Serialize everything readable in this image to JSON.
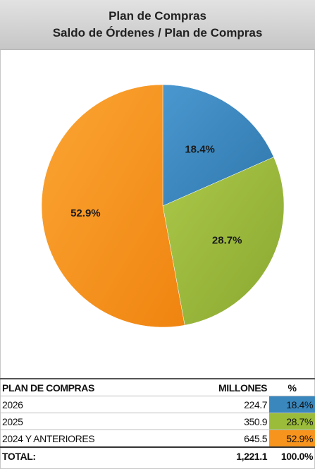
{
  "chart_data": {
    "type": "pie",
    "title": "Plan de Compras",
    "subtitle": "Saldo de Órdenes / Plan de Compras",
    "categories": [
      "2026",
      "2025",
      "2024 Y ANTERIORES"
    ],
    "values": [
      18.4,
      28.7,
      52.9
    ],
    "data_labels": [
      "18.4%",
      "28.7%",
      "52.9%"
    ],
    "colors": [
      "#3a87bd",
      "#9bbb3a",
      "#f7941d"
    ],
    "start": "12 o'clock, clockwise"
  },
  "table": {
    "headers": [
      "PLAN DE COMPRAS",
      "MILLONES",
      "%"
    ],
    "rows": [
      {
        "label": "2026",
        "millones": "224.7",
        "pct": "18.4%",
        "color": "#3a87bd"
      },
      {
        "label": "2025",
        "millones": "350.9",
        "pct": "28.7%",
        "color": "#9bbb3a"
      },
      {
        "label": "2024 Y ANTERIORES",
        "millones": "645.5",
        "pct": "52.9%",
        "color": "#f7941d"
      }
    ],
    "total": {
      "label": "TOTAL:",
      "millones": "1,221.1",
      "pct": "100.0%"
    }
  }
}
